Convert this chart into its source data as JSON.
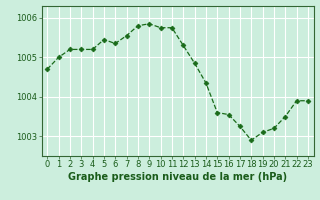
{
  "x": [
    0,
    1,
    2,
    3,
    4,
    5,
    6,
    7,
    8,
    9,
    10,
    11,
    12,
    13,
    14,
    15,
    16,
    17,
    18,
    19,
    20,
    21,
    22,
    23
  ],
  "y": [
    1004.7,
    1005.0,
    1005.2,
    1005.2,
    1005.2,
    1005.45,
    1005.35,
    1005.55,
    1005.8,
    1005.85,
    1005.75,
    1005.75,
    1005.3,
    1004.85,
    1004.35,
    1003.6,
    1003.55,
    1003.25,
    1002.9,
    1003.1,
    1003.2,
    1003.5,
    1003.9,
    1003.9
  ],
  "line_color": "#1a6b1a",
  "marker": "D",
  "markersize": 2.5,
  "bg_color": "#cceedd",
  "grid_color": "#ffffff",
  "xlabel": "Graphe pression niveau de la mer (hPa)",
  "xlabel_fontsize": 7,
  "tick_fontsize": 6,
  "ylim": [
    1002.5,
    1006.3
  ],
  "yticks": [
    1003,
    1004,
    1005,
    1006
  ],
  "xlim": [
    -0.5,
    23.5
  ],
  "xtick_labels": [
    "0",
    "1",
    "2",
    "3",
    "4",
    "5",
    "6",
    "7",
    "8",
    "9",
    "10",
    "11",
    "12",
    "13",
    "14",
    "15",
    "16",
    "17",
    "18",
    "19",
    "20",
    "21",
    "22",
    "23"
  ]
}
